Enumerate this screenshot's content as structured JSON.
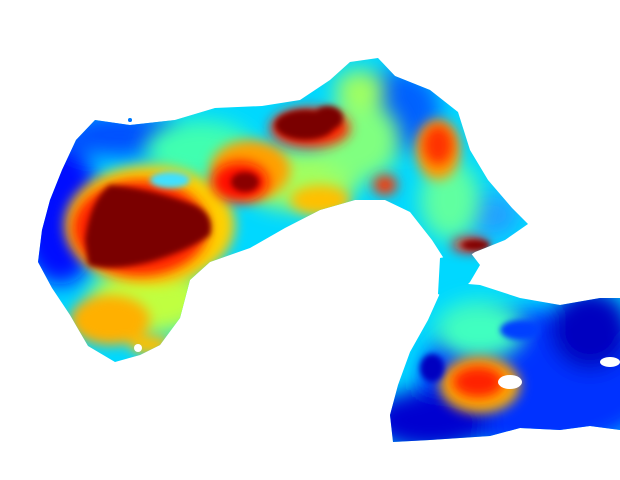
{
  "image": {
    "kind": "heatmap-jet-colormap-region",
    "colormap_stops": [
      "#00007f",
      "#0000ff",
      "#0080ff",
      "#00ffff",
      "#80ff80",
      "#ffff00",
      "#ff8000",
      "#ff0000",
      "#7f0000"
    ],
    "background": "#ffffff"
  }
}
